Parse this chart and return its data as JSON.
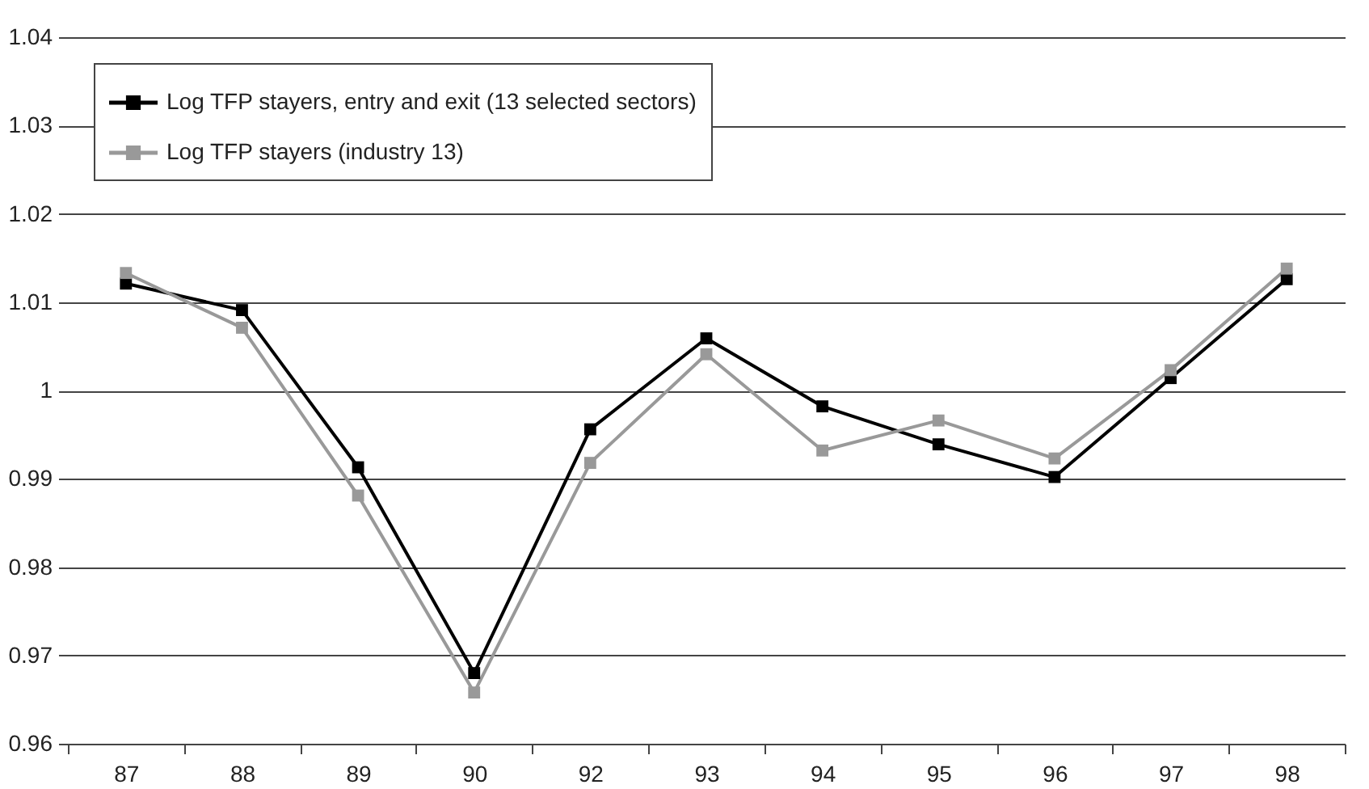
{
  "chart_data": {
    "type": "line",
    "categories": [
      "87",
      "88",
      "89",
      "90",
      "92",
      "93",
      "94",
      "95",
      "96",
      "97",
      "98"
    ],
    "series": [
      {
        "name": "Log TFP stayers, entry and exit (13 selected sectors)",
        "color": "#000000",
        "values": [
          1.0121,
          1.0091,
          0.9913,
          0.968,
          0.9956,
          1.0059,
          0.9982,
          0.9939,
          0.9902,
          1.0014,
          1.0126
        ]
      },
      {
        "name": "Log TFP stayers (industry 13)",
        "color": "#999999",
        "values": [
          1.0133,
          1.0071,
          0.9881,
          0.9658,
          0.9918,
          1.0041,
          0.9932,
          0.9966,
          0.9923,
          1.0023,
          1.0138
        ]
      }
    ],
    "ylim": [
      0.96,
      1.04
    ],
    "yticks": [
      0.96,
      0.97,
      0.98,
      0.99,
      1,
      1.01,
      1.02,
      1.03,
      1.04
    ],
    "grid": "y",
    "legend": "top left",
    "marker": "square",
    "line_style": "solid"
  }
}
